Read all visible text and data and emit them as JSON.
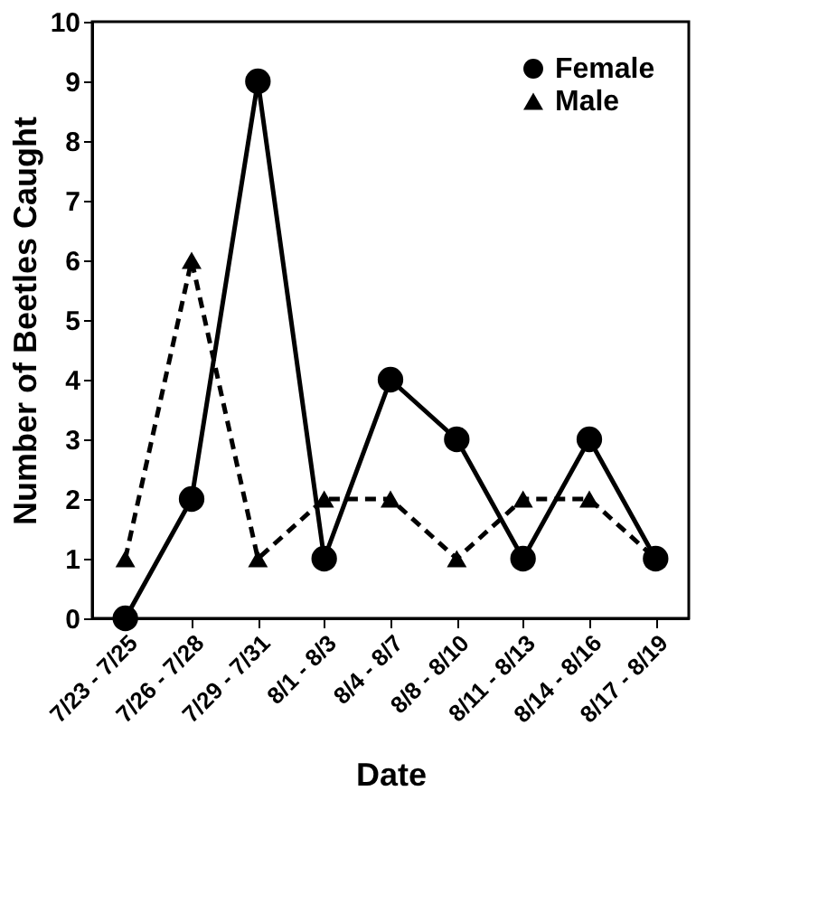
{
  "chart_data": {
    "type": "line",
    "xlabel": "Date",
    "ylabel": "Number of Beetles Caught",
    "categories": [
      "7/23 - 7/25",
      "7/26 - 7/28",
      "7/29 - 7/31",
      "8/1 - 8/3",
      "8/4 - 8/7",
      "8/8 - 8/10",
      "8/11 - 8/13",
      "8/14 - 8/16",
      "8/17 - 8/19"
    ],
    "series": [
      {
        "name": "Female",
        "color": "#000000",
        "marker": "circle",
        "line_style": "solid",
        "values": [
          0,
          2,
          9,
          1,
          4,
          3,
          1,
          3,
          1
        ]
      },
      {
        "name": "Male",
        "color": "#000000",
        "marker": "triangle",
        "line_style": "dashed",
        "values": [
          1,
          6,
          1,
          2,
          2,
          1,
          2,
          2,
          1
        ]
      }
    ],
    "ylim": [
      0,
      10
    ],
    "yticks": [
      0,
      1,
      2,
      3,
      4,
      5,
      6,
      7,
      8,
      9,
      10
    ],
    "grid": false,
    "legend": "top right"
  }
}
